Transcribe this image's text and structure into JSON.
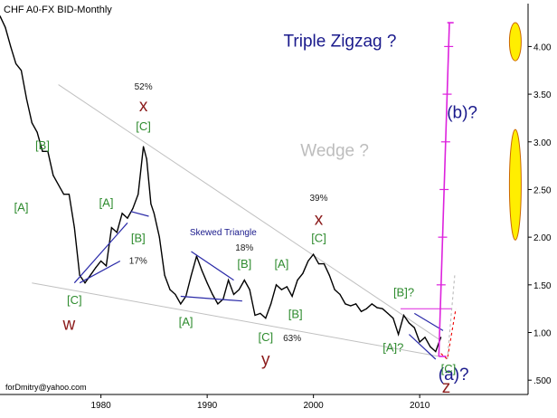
{
  "chart_data": {
    "type": "line",
    "title": "CHF A0-FX BID-Monthly",
    "footer_email": "forDmitry@yahoo.com",
    "xlabel": "",
    "ylabel": "",
    "xlim": [
      1970.5,
      2013.2
    ],
    "ylim": [
      0.35,
      4.45
    ],
    "x_ticks": [
      1980,
      1990,
      2000,
      2010
    ],
    "y_ticks": [
      {
        "value": 0.5,
        "label": ".500"
      },
      {
        "value": 1.0,
        "label": "1.00"
      },
      {
        "value": 1.5,
        "label": "1.50"
      },
      {
        "value": 2.0,
        "label": "2.00"
      },
      {
        "value": 2.5,
        "label": "2.50"
      },
      {
        "value": 3.0,
        "label": "3.00"
      },
      {
        "value": 3.5,
        "label": "3.50"
      },
      {
        "value": 4.0,
        "label": "4.00"
      }
    ],
    "grid": false,
    "colors": {
      "price": "#000000",
      "trendline": "#c0c0c0",
      "channel": "#2a2aa8",
      "projection": "#dd22dd",
      "dashed": "#ee0000",
      "wave_label": "#2e8b2e",
      "primary_label": "#8b1a1a",
      "title_label": "#1a1a8c",
      "ellipse_fill": "#ffee00",
      "ellipse_stroke": "#cc6600"
    },
    "series": [
      {
        "x": [
          1970.5,
          1971.0,
          1971.5,
          1972.0,
          1972.5,
          1973.0,
          1973.5,
          1974.0,
          1974.5,
          1975.0,
          1975.5,
          1976.0,
          1976.5,
          1977.0,
          1977.5,
          1978.0,
          1978.5,
          1979.0,
          1979.5,
          1980.0,
          1980.5,
          1981.0,
          1981.5,
          1982.0,
          1982.5,
          1983.0,
          1983.5,
          1984.0,
          1984.3,
          1984.7,
          1985.0,
          1985.5,
          1986.0,
          1986.5,
          1987.0,
          1987.5,
          1988.0,
          1988.5,
          1989.0,
          1989.5,
          1990.0,
          1990.5,
          1991.0,
          1991.5,
          1992.0,
          1992.5,
          1993.0,
          1993.5,
          1994.0,
          1994.5,
          1995.0,
          1995.5,
          1996.0,
          1996.5,
          1997.0,
          1997.5,
          1998.0,
          1998.5,
          1999.0,
          1999.5,
          2000.0,
          2000.5,
          2001.0,
          2001.5,
          2002.0,
          2002.5,
          2003.0,
          2003.5,
          2004.0,
          2004.5,
          2005.0,
          2005.5,
          2006.0,
          2006.5,
          2007.0,
          2007.5,
          2008.0,
          2008.5,
          2009.0,
          2009.5,
          2010.0,
          2010.5,
          2011.0,
          2011.5,
          2012.0
        ],
        "y": [
          4.32,
          4.2,
          4.0,
          3.82,
          3.75,
          3.45,
          3.2,
          3.1,
          2.9,
          2.9,
          2.65,
          2.55,
          2.45,
          2.45,
          2.1,
          1.6,
          1.52,
          1.6,
          1.68,
          1.75,
          1.7,
          2.1,
          2.05,
          2.25,
          2.2,
          2.3,
          2.45,
          2.95,
          2.82,
          2.35,
          2.25,
          2.0,
          1.6,
          1.45,
          1.4,
          1.3,
          1.38,
          1.6,
          1.8,
          1.65,
          1.52,
          1.4,
          1.3,
          1.35,
          1.55,
          1.4,
          1.45,
          1.55,
          1.45,
          1.18,
          1.2,
          1.15,
          1.3,
          1.5,
          1.45,
          1.48,
          1.38,
          1.55,
          1.62,
          1.75,
          1.82,
          1.72,
          1.72,
          1.6,
          1.45,
          1.4,
          1.3,
          1.28,
          1.3,
          1.22,
          1.25,
          1.3,
          1.26,
          1.25,
          1.2,
          1.15,
          0.98,
          1.18,
          1.1,
          1.05,
          0.9,
          0.95,
          0.85,
          0.8,
          0.95
        ]
      }
    ],
    "trendlines": [
      {
        "name": "wedge-upper",
        "x": [
          1976.0,
          2011.8
        ],
        "y": [
          3.6,
          0.93
        ]
      },
      {
        "name": "wedge-lower",
        "x": [
          1973.5,
          2011.8
        ],
        "y": [
          1.52,
          0.75
        ]
      },
      {
        "name": "resistance-1.25",
        "x": [
          2008.2,
          2013.0
        ],
        "y": [
          1.25,
          1.25
        ]
      }
    ],
    "channels": [
      {
        "name": "c-a-channel",
        "x": [
          1977.5,
          1982.5
        ],
        "y": [
          1.52,
          2.15
        ]
      },
      {
        "name": "c-a-channel-low",
        "x": [
          1978.0,
          1981.8
        ],
        "y": [
          1.52,
          1.75
        ]
      },
      {
        "name": "c-b-channel",
        "x": [
          1982.8,
          1984.5
        ],
        "y": [
          2.27,
          2.22
        ]
      },
      {
        "name": "triangle-upper",
        "x": [
          1988.5,
          1992.5
        ],
        "y": [
          1.85,
          1.55
        ]
      },
      {
        "name": "triangle-lower",
        "x": [
          1987.5,
          1993.3
        ],
        "y": [
          1.38,
          1.33
        ]
      },
      {
        "name": "final-upper",
        "x": [
          2009.5,
          2012.2
        ],
        "y": [
          1.2,
          1.02
        ]
      },
      {
        "name": "final-lower",
        "x": [
          2009.0,
          2011.5
        ],
        "y": [
          0.98,
          0.72
        ]
      }
    ],
    "projections": [
      {
        "name": "b-vertical",
        "x": [
          2011.8,
          2012.8
        ],
        "y": [
          0.75,
          4.25
        ]
      },
      {
        "name": "b-top",
        "x": [
          2012.6,
          2013.2
        ],
        "y": [
          4.25,
          4.25
        ]
      },
      {
        "name": "b-base",
        "x": [
          2011.8,
          2012.5
        ],
        "y": [
          0.75,
          0.75
        ]
      }
    ],
    "dashed_paths": [
      {
        "x": [
          2012.0,
          2012.6,
          2013.4
        ],
        "y": [
          0.78,
          0.72,
          1.25
        ]
      },
      {
        "x": [
          2012.6,
          2013.3
        ],
        "y": [
          0.72,
          1.6
        ]
      }
    ],
    "ticks_on_projection": [
      1.5,
      2.0,
      2.5,
      3.0,
      3.5,
      4.0
    ],
    "annotations": [
      {
        "text": "Triple Zigzag ?",
        "x": 2002.5,
        "y": 4.0,
        "kind": "title"
      },
      {
        "text": "Wedge ?",
        "x": 2002.0,
        "y": 2.85,
        "kind": "wedge"
      },
      {
        "text": "(b)?",
        "x": 2014.0,
        "y": 3.25,
        "kind": "title"
      },
      {
        "text": "(a)?",
        "x": 2013.2,
        "y": 0.5,
        "kind": "title"
      },
      {
        "text": "52%",
        "x": 1984.0,
        "y": 3.55,
        "kind": "pct"
      },
      {
        "text": "x",
        "x": 1984.0,
        "y": 3.32,
        "kind": "primary"
      },
      {
        "text": "[C]",
        "x": 1984.0,
        "y": 3.12,
        "kind": "wave"
      },
      {
        "text": "[B]",
        "x": 1974.5,
        "y": 2.92,
        "kind": "wave"
      },
      {
        "text": "[A]",
        "x": 1972.5,
        "y": 2.27,
        "kind": "wave"
      },
      {
        "text": "[A]",
        "x": 1980.5,
        "y": 2.32,
        "kind": "wave"
      },
      {
        "text": "[B]",
        "x": 1983.5,
        "y": 1.95,
        "kind": "wave"
      },
      {
        "text": "17%",
        "x": 1983.5,
        "y": 1.72,
        "kind": "pct"
      },
      {
        "text": "[C]",
        "x": 1977.5,
        "y": 1.3,
        "kind": "wave"
      },
      {
        "text": "w",
        "x": 1977.0,
        "y": 1.03,
        "kind": "primary"
      },
      {
        "text": "Skewed Triangle",
        "x": 1991.5,
        "y": 2.02,
        "kind": "note"
      },
      {
        "text": "18%",
        "x": 1993.5,
        "y": 1.86,
        "kind": "pct"
      },
      {
        "text": "[B]",
        "x": 1993.5,
        "y": 1.68,
        "kind": "wave"
      },
      {
        "text": "[A]",
        "x": 1988.0,
        "y": 1.07,
        "kind": "wave"
      },
      {
        "text": "[A]",
        "x": 1997.0,
        "y": 1.68,
        "kind": "wave"
      },
      {
        "text": "[C]",
        "x": 1995.5,
        "y": 0.91,
        "kind": "wave"
      },
      {
        "text": "y",
        "x": 1995.5,
        "y": 0.66,
        "kind": "primary"
      },
      {
        "text": "[B]",
        "x": 1998.3,
        "y": 1.15,
        "kind": "wave"
      },
      {
        "text": "63%",
        "x": 1998.0,
        "y": 0.91,
        "kind": "pct"
      },
      {
        "text": "39%",
        "x": 2000.5,
        "y": 2.38,
        "kind": "pct"
      },
      {
        "text": "x",
        "x": 2000.5,
        "y": 2.13,
        "kind": "primary"
      },
      {
        "text": "[C]",
        "x": 2000.5,
        "y": 1.95,
        "kind": "wave"
      },
      {
        "text": "[B]?",
        "x": 2008.5,
        "y": 1.38,
        "kind": "wave"
      },
      {
        "text": "[A]?",
        "x": 2007.5,
        "y": 0.8,
        "kind": "wave"
      },
      {
        "text": "[C]",
        "x": 2012.7,
        "y": 0.58,
        "kind": "wave"
      },
      {
        "text": "z",
        "x": 2012.5,
        "y": 0.37,
        "kind": "primary"
      }
    ],
    "ellipses": [
      {
        "name": "target-upper",
        "x": 2019.0,
        "y": 4.05,
        "rx_years": 0.55,
        "ry_value": 0.2
      },
      {
        "name": "target-lower",
        "x": 2019.0,
        "y": 2.55,
        "rx_years": 0.55,
        "ry_value": 0.58
      }
    ]
  }
}
